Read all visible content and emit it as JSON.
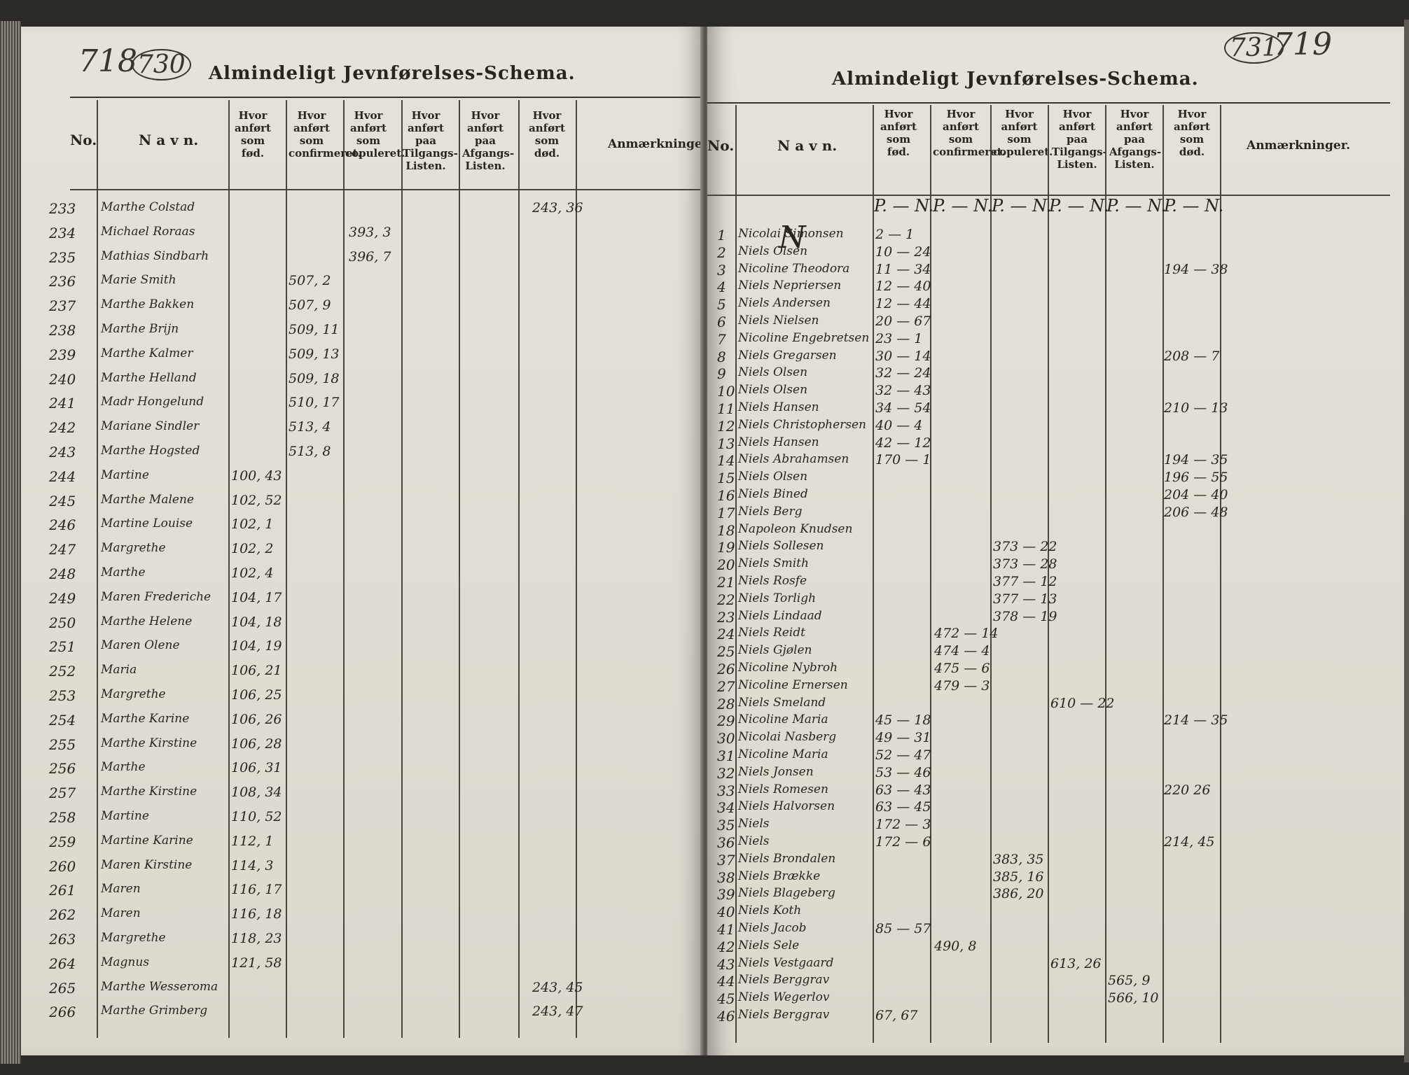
{
  "left_page": {
    "page_old": "718",
    "page_new": "730",
    "title": "Almindeligt Jevnførelses-Schema.",
    "headers": {
      "no": "No.",
      "navn": "N a v n.",
      "fod": "Hvor anført som fød.",
      "confirmeret": "Hvor anført som confirmeret.",
      "copuleret": "Hvor anført som copuleret.",
      "tilgang": "Hvor anført paa Tilgangs-Listen.",
      "afgang": "Hvor anført paa Afgangs-Listen.",
      "dod": "Hvor anført som død.",
      "anm": "Anmærkninger."
    },
    "rows": [
      {
        "no": "233",
        "name": "Marthe Colstad",
        "fod": "",
        "conf": "",
        "cop": "",
        "tilg": "",
        "afg": "",
        "dod": "243, 36"
      },
      {
        "no": "234",
        "name": "Michael Roraas",
        "fod": "",
        "conf": "",
        "cop": "393, 3",
        "tilg": "",
        "afg": "",
        "dod": ""
      },
      {
        "no": "235",
        "name": "Mathias Sindbarh",
        "fod": "",
        "conf": "",
        "cop": "396, 7",
        "tilg": "",
        "afg": "",
        "dod": ""
      },
      {
        "no": "236",
        "name": "Marie Smith",
        "fod": "",
        "conf": "507, 2",
        "cop": "",
        "tilg": "",
        "afg": "",
        "dod": ""
      },
      {
        "no": "237",
        "name": "Marthe Bakken",
        "fod": "",
        "conf": "507, 9",
        "cop": "",
        "tilg": "",
        "afg": "",
        "dod": ""
      },
      {
        "no": "238",
        "name": "Marthe Brijn",
        "fod": "",
        "conf": "509, 11",
        "cop": "",
        "tilg": "",
        "afg": "",
        "dod": ""
      },
      {
        "no": "239",
        "name": "Marthe Kalmer",
        "fod": "",
        "conf": "509, 13",
        "cop": "",
        "tilg": "",
        "afg": "",
        "dod": ""
      },
      {
        "no": "240",
        "name": "Marthe Helland",
        "fod": "",
        "conf": "509, 18",
        "cop": "",
        "tilg": "",
        "afg": "",
        "dod": ""
      },
      {
        "no": "241",
        "name": "Madr Hongelund",
        "fod": "",
        "conf": "510, 17",
        "cop": "",
        "tilg": "",
        "afg": "",
        "dod": ""
      },
      {
        "no": "242",
        "name": "Mariane Sindler",
        "fod": "",
        "conf": "513, 4",
        "cop": "",
        "tilg": "",
        "afg": "",
        "dod": ""
      },
      {
        "no": "243",
        "name": "Marthe Hogsted",
        "fod": "",
        "conf": "513, 8",
        "cop": "",
        "tilg": "",
        "afg": "",
        "dod": ""
      },
      {
        "no": "244",
        "name": "Martine",
        "fod": "100, 43",
        "conf": "",
        "cop": "",
        "tilg": "",
        "afg": "",
        "dod": ""
      },
      {
        "no": "245",
        "name": "Marthe Malene",
        "fod": "102, 52",
        "conf": "",
        "cop": "",
        "tilg": "",
        "afg": "",
        "dod": ""
      },
      {
        "no": "246",
        "name": "Martine Louise",
        "fod": "102, 1",
        "conf": "",
        "cop": "",
        "tilg": "",
        "afg": "",
        "dod": ""
      },
      {
        "no": "247",
        "name": "Margrethe",
        "fod": "102, 2",
        "conf": "",
        "cop": "",
        "tilg": "",
        "afg": "",
        "dod": ""
      },
      {
        "no": "248",
        "name": "Marthe",
        "fod": "102, 4",
        "conf": "",
        "cop": "",
        "tilg": "",
        "afg": "",
        "dod": ""
      },
      {
        "no": "249",
        "name": "Maren Frederiche",
        "fod": "104, 17",
        "conf": "",
        "cop": "",
        "tilg": "",
        "afg": "",
        "dod": ""
      },
      {
        "no": "250",
        "name": "Marthe Helene",
        "fod": "104, 18",
        "conf": "",
        "cop": "",
        "tilg": "",
        "afg": "",
        "dod": ""
      },
      {
        "no": "251",
        "name": "Maren Olene",
        "fod": "104, 19",
        "conf": "",
        "cop": "",
        "tilg": "",
        "afg": "",
        "dod": ""
      },
      {
        "no": "252",
        "name": "Maria",
        "fod": "106, 21",
        "conf": "",
        "cop": "",
        "tilg": "",
        "afg": "",
        "dod": ""
      },
      {
        "no": "253",
        "name": "Margrethe",
        "fod": "106, 25",
        "conf": "",
        "cop": "",
        "tilg": "",
        "afg": "",
        "dod": ""
      },
      {
        "no": "254",
        "name": "Marthe Karine",
        "fod": "106, 26",
        "conf": "",
        "cop": "",
        "tilg": "",
        "afg": "",
        "dod": ""
      },
      {
        "no": "255",
        "name": "Marthe Kirstine",
        "fod": "106, 28",
        "conf": "",
        "cop": "",
        "tilg": "",
        "afg": "",
        "dod": ""
      },
      {
        "no": "256",
        "name": "Marthe",
        "fod": "106, 31",
        "conf": "",
        "cop": "",
        "tilg": "",
        "afg": "",
        "dod": ""
      },
      {
        "no": "257",
        "name": "Marthe Kirstine",
        "fod": "108, 34",
        "conf": "",
        "cop": "",
        "tilg": "",
        "afg": "",
        "dod": ""
      },
      {
        "no": "258",
        "name": "Martine",
        "fod": "110, 52",
        "conf": "",
        "cop": "",
        "tilg": "",
        "afg": "",
        "dod": ""
      },
      {
        "no": "259",
        "name": "Martine Karine",
        "fod": "112, 1",
        "conf": "",
        "cop": "",
        "tilg": "",
        "afg": "",
        "dod": ""
      },
      {
        "no": "260",
        "name": "Maren Kirstine",
        "fod": "114, 3",
        "conf": "",
        "cop": "",
        "tilg": "",
        "afg": "",
        "dod": ""
      },
      {
        "no": "261",
        "name": "Maren",
        "fod": "116, 17",
        "conf": "",
        "cop": "",
        "tilg": "",
        "afg": "",
        "dod": ""
      },
      {
        "no": "262",
        "name": "Maren",
        "fod": "116, 18",
        "conf": "",
        "cop": "",
        "tilg": "",
        "afg": "",
        "dod": ""
      },
      {
        "no": "263",
        "name": "Margrethe",
        "fod": "118, 23",
        "conf": "",
        "cop": "",
        "tilg": "",
        "afg": "",
        "dod": ""
      },
      {
        "no": "264",
        "name": "Magnus",
        "fod": "121, 58",
        "conf": "",
        "cop": "",
        "tilg": "",
        "afg": "",
        "dod": ""
      },
      {
        "no": "265",
        "name": "Marthe Wesseroma",
        "fod": "",
        "conf": "",
        "cop": "",
        "tilg": "",
        "afg": "",
        "dod": "243, 45"
      },
      {
        "no": "266",
        "name": "Marthe Grimberg",
        "fod": "",
        "conf": "",
        "cop": "",
        "tilg": "",
        "afg": "",
        "dod": "243, 47"
      }
    ]
  },
  "right_page": {
    "page_old": "719",
    "page_new": "731",
    "title": "Almindeligt Jevnførelses-Schema.",
    "headers": {
      "no": "No.",
      "navn": "N a v n.",
      "fod": "Hvor anført som fød.",
      "confirmeret": "Hvor anført som confirmeret.",
      "copuleret": "Hvor anført som copuleret.",
      "tilgang": "Hvor anført paa Tilgangs-Listen.",
      "afgang": "Hvor anført paa Afgangs-Listen.",
      "dod": "Hvor anført som død.",
      "anm": "Anmærkninger."
    },
    "colmarks": [
      "P. — N.",
      "P. — N.",
      "P. — N.",
      "P. — N.",
      "P. — N.",
      "P. — N."
    ],
    "letter": "N",
    "rows": [
      {
        "no": "1",
        "name": "Nicolai Simonsen",
        "fod": "2 — 1",
        "conf": "",
        "cop": "",
        "tilg": "",
        "afg": "",
        "dod": ""
      },
      {
        "no": "2",
        "name": "Niels Olsen",
        "fod": "10 — 24",
        "conf": "",
        "cop": "",
        "tilg": "",
        "afg": "",
        "dod": ""
      },
      {
        "no": "3",
        "name": "Nicoline Theodora",
        "fod": "11 — 34",
        "conf": "",
        "cop": "",
        "tilg": "",
        "afg": "",
        "dod": "194 — 38"
      },
      {
        "no": "4",
        "name": "Niels Nepriersen",
        "fod": "12 — 40",
        "conf": "",
        "cop": "",
        "tilg": "",
        "afg": "",
        "dod": ""
      },
      {
        "no": "5",
        "name": "Niels Andersen",
        "fod": "12 — 44",
        "conf": "",
        "cop": "",
        "tilg": "",
        "afg": "",
        "dod": ""
      },
      {
        "no": "6",
        "name": "Niels Nielsen",
        "fod": "20 — 67",
        "conf": "",
        "cop": "",
        "tilg": "",
        "afg": "",
        "dod": ""
      },
      {
        "no": "7",
        "name": "Nicoline Engebretsen",
        "fod": "23 — 1",
        "conf": "",
        "cop": "",
        "tilg": "",
        "afg": "",
        "dod": ""
      },
      {
        "no": "8",
        "name": "Niels Gregarsen",
        "fod": "30 — 14",
        "conf": "",
        "cop": "",
        "tilg": "",
        "afg": "",
        "dod": "208 — 7"
      },
      {
        "no": "9",
        "name": "Niels Olsen",
        "fod": "32 — 24",
        "conf": "",
        "cop": "",
        "tilg": "",
        "afg": "",
        "dod": ""
      },
      {
        "no": "10",
        "name": "Niels Olsen",
        "fod": "32 — 43",
        "conf": "",
        "cop": "",
        "tilg": "",
        "afg": "",
        "dod": ""
      },
      {
        "no": "11",
        "name": "Niels Hansen",
        "fod": "34 — 54",
        "conf": "",
        "cop": "",
        "tilg": "",
        "afg": "",
        "dod": "210 — 13"
      },
      {
        "no": "12",
        "name": "Niels Christophersen",
        "fod": "40 — 4",
        "conf": "",
        "cop": "",
        "tilg": "",
        "afg": "",
        "dod": ""
      },
      {
        "no": "13",
        "name": "Niels Hansen",
        "fod": "42 — 12",
        "conf": "",
        "cop": "",
        "tilg": "",
        "afg": "",
        "dod": ""
      },
      {
        "no": "14",
        "name": "Niels Abrahamsen",
        "fod": "170 — 1",
        "conf": "",
        "cop": "",
        "tilg": "",
        "afg": "",
        "dod": "194 — 35"
      },
      {
        "no": "15",
        "name": "Niels Olsen",
        "fod": "",
        "conf": "",
        "cop": "",
        "tilg": "",
        "afg": "",
        "dod": "196 — 55"
      },
      {
        "no": "16",
        "name": "Niels Bined",
        "fod": "",
        "conf": "",
        "cop": "",
        "tilg": "",
        "afg": "",
        "dod": "204 — 40"
      },
      {
        "no": "17",
        "name": "Niels Berg",
        "fod": "",
        "conf": "",
        "cop": "",
        "tilg": "",
        "afg": "",
        "dod": "206 — 48"
      },
      {
        "no": "18",
        "name": "Napoleon Knudsen",
        "fod": "",
        "conf": "",
        "cop": "",
        "tilg": "",
        "afg": "",
        "dod": ""
      },
      {
        "no": "19",
        "name": "Niels Sollesen",
        "fod": "",
        "conf": "",
        "cop": "373 — 22",
        "tilg": "",
        "afg": "",
        "dod": ""
      },
      {
        "no": "20",
        "name": "Niels Smith",
        "fod": "",
        "conf": "",
        "cop": "373 — 28",
        "tilg": "",
        "afg": "",
        "dod": ""
      },
      {
        "no": "21",
        "name": "Niels Rosfe",
        "fod": "",
        "conf": "",
        "cop": "377 — 12",
        "tilg": "",
        "afg": "",
        "dod": ""
      },
      {
        "no": "22",
        "name": "Niels Torligh",
        "fod": "",
        "conf": "",
        "cop": "377 — 13",
        "tilg": "",
        "afg": "",
        "dod": ""
      },
      {
        "no": "23",
        "name": "Niels Lindaad",
        "fod": "",
        "conf": "",
        "cop": "378 — 19",
        "tilg": "",
        "afg": "",
        "dod": ""
      },
      {
        "no": "24",
        "name": "Niels Reidt",
        "fod": "",
        "conf": "472 — 14",
        "cop": "",
        "tilg": "",
        "afg": "",
        "dod": ""
      },
      {
        "no": "25",
        "name": "Niels Gjølen",
        "fod": "",
        "conf": "474 — 4",
        "cop": "",
        "tilg": "",
        "afg": "",
        "dod": ""
      },
      {
        "no": "26",
        "name": "Nicoline Nybroh",
        "fod": "",
        "conf": "475 — 6",
        "cop": "",
        "tilg": "",
        "afg": "",
        "dod": ""
      },
      {
        "no": "27",
        "name": "Nicoline Ernersen",
        "fod": "",
        "conf": "479 — 3",
        "cop": "",
        "tilg": "",
        "afg": "",
        "dod": ""
      },
      {
        "no": "28",
        "name": "Niels Smeland",
        "fod": "",
        "conf": "",
        "cop": "",
        "tilg": "610 — 22",
        "afg": "",
        "dod": ""
      },
      {
        "no": "29",
        "name": "Nicoline Maria",
        "fod": "45 — 18",
        "conf": "",
        "cop": "",
        "tilg": "",
        "afg": "",
        "dod": "214 — 35"
      },
      {
        "no": "30",
        "name": "Nicolai Nasberg",
        "fod": "49 — 31",
        "conf": "",
        "cop": "",
        "tilg": "",
        "afg": "",
        "dod": ""
      },
      {
        "no": "31",
        "name": "Nicoline Maria",
        "fod": "52 — 47",
        "conf": "",
        "cop": "",
        "tilg": "",
        "afg": "",
        "dod": ""
      },
      {
        "no": "32",
        "name": "Niels Jonsen",
        "fod": "53 — 46",
        "conf": "",
        "cop": "",
        "tilg": "",
        "afg": "",
        "dod": ""
      },
      {
        "no": "33",
        "name": "Niels Romesen",
        "fod": "63 — 43",
        "conf": "",
        "cop": "",
        "tilg": "",
        "afg": "",
        "dod": "220 26"
      },
      {
        "no": "34",
        "name": "Niels Halvorsen",
        "fod": "63 — 45",
        "conf": "",
        "cop": "",
        "tilg": "",
        "afg": "",
        "dod": ""
      },
      {
        "no": "35",
        "name": "Niels",
        "fod": "172 — 3",
        "conf": "",
        "cop": "",
        "tilg": "",
        "afg": "",
        "dod": ""
      },
      {
        "no": "36",
        "name": "Niels",
        "fod": "172 — 6",
        "conf": "",
        "cop": "",
        "tilg": "",
        "afg": "",
        "dod": "214, 45"
      },
      {
        "no": "37",
        "name": "Niels Brondalen",
        "fod": "",
        "conf": "",
        "cop": "383, 35",
        "tilg": "",
        "afg": "",
        "dod": ""
      },
      {
        "no": "38",
        "name": "Niels Brække",
        "fod": "",
        "conf": "",
        "cop": "385, 16",
        "tilg": "",
        "afg": "",
        "dod": ""
      },
      {
        "no": "39",
        "name": "Niels Blageberg",
        "fod": "",
        "conf": "",
        "cop": "386, 20",
        "tilg": "",
        "afg": "",
        "dod": ""
      },
      {
        "no": "40",
        "name": "Niels Koth",
        "fod": "",
        "conf": "",
        "cop": "",
        "tilg": "",
        "afg": "",
        "dod": ""
      },
      {
        "no": "41",
        "name": "Niels Jacob",
        "fod": "85 — 57",
        "conf": "",
        "cop": "",
        "tilg": "",
        "afg": "",
        "dod": ""
      },
      {
        "no": "42",
        "name": "Niels Sele",
        "fod": "",
        "conf": "490, 8",
        "cop": "",
        "tilg": "",
        "afg": "",
        "dod": ""
      },
      {
        "no": "43",
        "name": "Niels Vestgaard",
        "fod": "",
        "conf": "",
        "cop": "",
        "tilg": "613, 26",
        "afg": "",
        "dod": ""
      },
      {
        "no": "44",
        "name": "Niels Berggrav",
        "fod": "",
        "conf": "",
        "cop": "",
        "tilg": "",
        "afg": "565, 9",
        "dod": ""
      },
      {
        "no": "45",
        "name": "Niels Wegerlov",
        "fod": "",
        "conf": "",
        "cop": "",
        "tilg": "",
        "afg": "566, 10",
        "dod": ""
      },
      {
        "no": "46",
        "name": "Niels Berggrav",
        "fod": "67, 67",
        "conf": "",
        "cop": "",
        "tilg": "",
        "afg": "",
        "dod": ""
      }
    ]
  }
}
